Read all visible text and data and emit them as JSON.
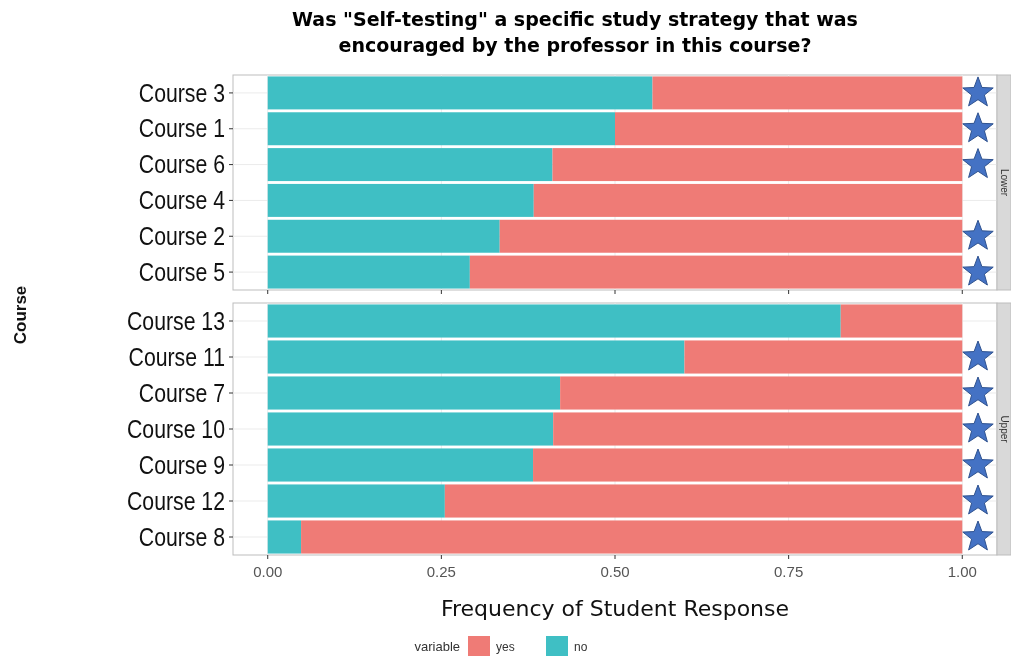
{
  "chart_data": [
    {
      "type": "bar",
      "title": "Was \"Self-testing\" a specific study strategy that was encouraged by the professor in this course?",
      "subtitle": "Lower",
      "ylabel": "Course",
      "orientation": "horizontal",
      "stacked": true,
      "categories": [
        "Course 3",
        "Course 1",
        "Course 6",
        "Course 4",
        "Course 2",
        "Course 5"
      ],
      "series": [
        {
          "color": "#3fbfc4",
          "values": [
            0.554,
            0.5,
            0.41,
            0.383,
            0.334,
            0.291
          ]
        },
        {
          "color": "#ef7b76",
          "values": [
            0.446,
            0.5,
            0.59,
            0.617,
            0.666,
            0.709
          ]
        }
      ],
      "xlim": [
        -0.05,
        1.05
      ],
      "xticks": [
        {
          "value": 0,
          "label": null
        },
        {
          "value": 0.25,
          "label": null
        },
        {
          "value": 0.5,
          "label": null
        },
        {
          "value": 0.75,
          "label": null
        },
        {
          "value": 1,
          "label": null
        }
      ],
      "grid": true,
      "tick_labels": "y",
      "legend": false
    },
    {
      "type": "bar",
      "subtitle": "Upper",
      "xlabel": "Frequency of Student Response",
      "legend_title": "variable",
      "orientation": "horizontal",
      "stacked": true,
      "categories": [
        "Course 13",
        "Course 11",
        "Course 7",
        "Course 10",
        "Course 9",
        "Course 12",
        "Course 8"
      ],
      "series": [
        {
          "name": "no",
          "color": "#3fbfc4",
          "values": [
            0.825,
            0.6,
            0.421,
            0.411,
            0.382,
            0.255,
            0.048
          ]
        },
        {
          "name": "yes",
          "color": "#ef7b76",
          "values": [
            0.175,
            0.4,
            0.579,
            0.589,
            0.618,
            0.745,
            0.952
          ]
        }
      ],
      "xlim": [
        -0.05,
        1.05
      ],
      "xticks": [
        {
          "value": 0,
          "label": "0.00"
        },
        {
          "value": 0.25,
          "label": "0.25"
        },
        {
          "value": 0.5,
          "label": "0.50"
        },
        {
          "value": 0.75,
          "label": "0.75"
        },
        {
          "value": 1,
          "label": "1.00"
        }
      ],
      "grid": true,
      "legend": "bottom"
    }
  ]
}
